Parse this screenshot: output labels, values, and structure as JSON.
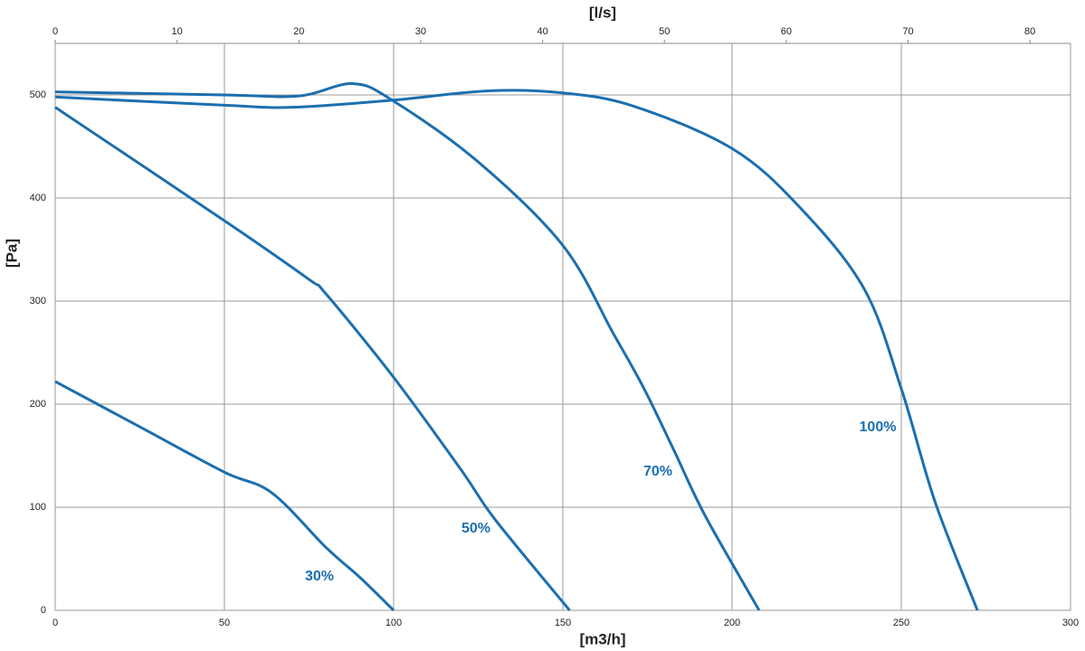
{
  "chart_data": {
    "type": "line",
    "x_label": "[m3/h]",
    "x2_label": "[l/s]",
    "y_label": "[Pa]",
    "xlim": [
      0,
      300
    ],
    "xticks": [
      0,
      50,
      100,
      150,
      200,
      250,
      300
    ],
    "x2lim": [
      0,
      83.33
    ],
    "x2ticks": [
      0,
      10,
      20,
      30,
      40,
      50,
      60,
      70,
      80
    ],
    "ylim": [
      0,
      550
    ],
    "yticks": [
      0,
      100,
      200,
      300,
      400,
      500
    ],
    "grid": true,
    "series": [
      {
        "name": "30%",
        "color": "#1b6faf",
        "x": [
          0,
          25,
          50,
          64,
          80,
          90,
          100
        ],
        "values": [
          222,
          178,
          134,
          114,
          61,
          32,
          0
        ]
      },
      {
        "name": "50%",
        "color": "#1b6faf",
        "x": [
          0,
          50,
          75,
          80,
          100,
          120,
          130,
          152
        ],
        "values": [
          488,
          378,
          321,
          307,
          226,
          136,
          88,
          0
        ]
      },
      {
        "name": "70%",
        "color": "#1b6faf",
        "x": [
          0,
          50,
          72,
          88,
          100,
          125,
          150,
          165,
          174,
          183,
          192,
          208
        ],
        "values": [
          503,
          500,
          499,
          511,
          494,
          435,
          354,
          268,
          215,
          154,
          92,
          0
        ]
      },
      {
        "name": "100%",
        "color": "#1b6faf",
        "x": [
          0,
          50,
          70,
          100,
          128,
          150,
          171,
          200,
          220,
          239,
          250,
          260,
          272.5
        ],
        "values": [
          498,
          490,
          488,
          495,
          504,
          502,
          489,
          448,
          391,
          312,
          215,
          105,
          0
        ]
      }
    ]
  }
}
